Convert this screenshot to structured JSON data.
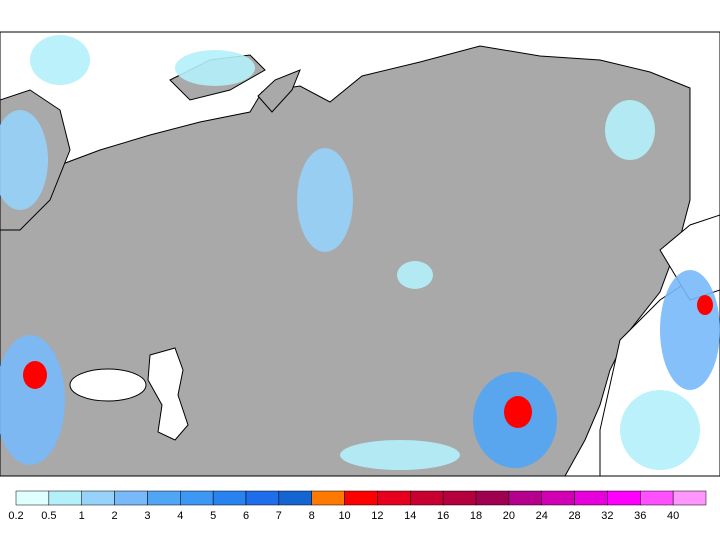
{
  "legend": {
    "labels": [
      0.2,
      0.5,
      1,
      2,
      3,
      4,
      5,
      6,
      7,
      8,
      10,
      12,
      14,
      16,
      18,
      20,
      24,
      28,
      32,
      36,
      40
    ],
    "colors": [
      "#e0ffff",
      "#b4f0fa",
      "#96d2fa",
      "#78b9fa",
      "#50a5f5",
      "#3c97f5",
      "#2882f0",
      "#1e6eeb",
      "#1464d2",
      "#ff7800",
      "#ff0000",
      "#e6001e",
      "#c80032",
      "#b4003c",
      "#a00050",
      "#b4008c",
      "#d200b4",
      "#e600dc",
      "#ff00ff",
      "#ff50ff",
      "#ff96ff"
    ]
  }
}
